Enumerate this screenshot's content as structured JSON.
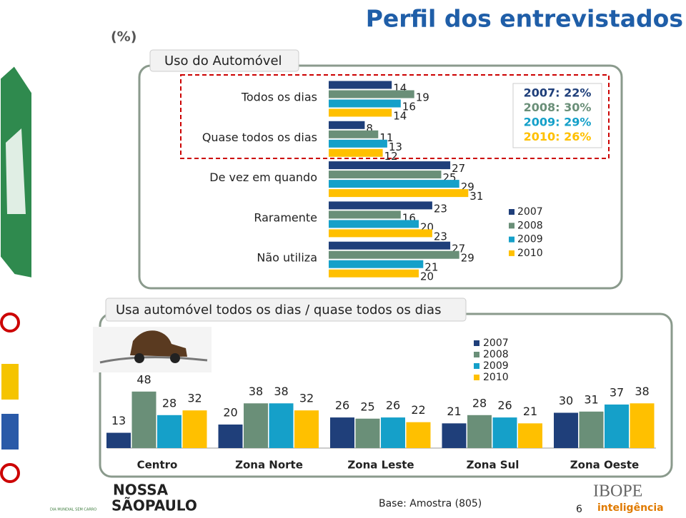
{
  "header": {
    "unit": "(%)",
    "title": "Perfil dos entrevistados"
  },
  "chart_data": [
    {
      "type": "hbar",
      "title": "Uso do Automóvel",
      "categories": [
        "Todos os dias",
        "Quase todos os dias",
        "De vez em quando",
        "Raramente",
        "Não utiliza"
      ],
      "series": [
        {
          "name": "2007",
          "color": "#1f3f7a",
          "values": [
            14,
            8,
            27,
            23,
            27
          ]
        },
        {
          "name": "2008",
          "color": "#6a8f78",
          "values": [
            19,
            11,
            25,
            16,
            29
          ]
        },
        {
          "name": "2009",
          "color": "#15a0c9",
          "values": [
            16,
            13,
            29,
            20,
            21
          ]
        },
        {
          "name": "2010",
          "color": "#ffc000",
          "values": [
            14,
            12,
            31,
            23,
            20
          ]
        }
      ],
      "annotations": [
        "2007: 22%",
        "2008: 30%",
        "2009: 29%",
        "2010: 26%"
      ],
      "legend": "right"
    },
    {
      "type": "bar",
      "title": "Usa automóvel todos os dias / quase todos os dias",
      "categories": [
        "Centro",
        "Zona Norte",
        "Zona Leste",
        "Zona Sul",
        "Zona Oeste"
      ],
      "series": [
        {
          "name": "2007",
          "color": "#1f3f7a",
          "values": [
            13,
            20,
            26,
            21,
            30
          ]
        },
        {
          "name": "2008",
          "color": "#6a8f78",
          "values": [
            48,
            38,
            25,
            28,
            31
          ]
        },
        {
          "name": "2009",
          "color": "#15a0c9",
          "values": [
            28,
            38,
            26,
            26,
            37
          ]
        },
        {
          "name": "2010",
          "color": "#ffc000",
          "values": [
            32,
            32,
            22,
            21,
            38
          ]
        }
      ],
      "legend": "top"
    }
  ],
  "footer": {
    "base": "Base: Amostra (805)",
    "page": "6",
    "logos": [
      "NOSSA",
      "SÃOPAULO",
      "IBOPE",
      "inteligência",
      "DIA MUNDIAL SEM CARRO"
    ]
  }
}
